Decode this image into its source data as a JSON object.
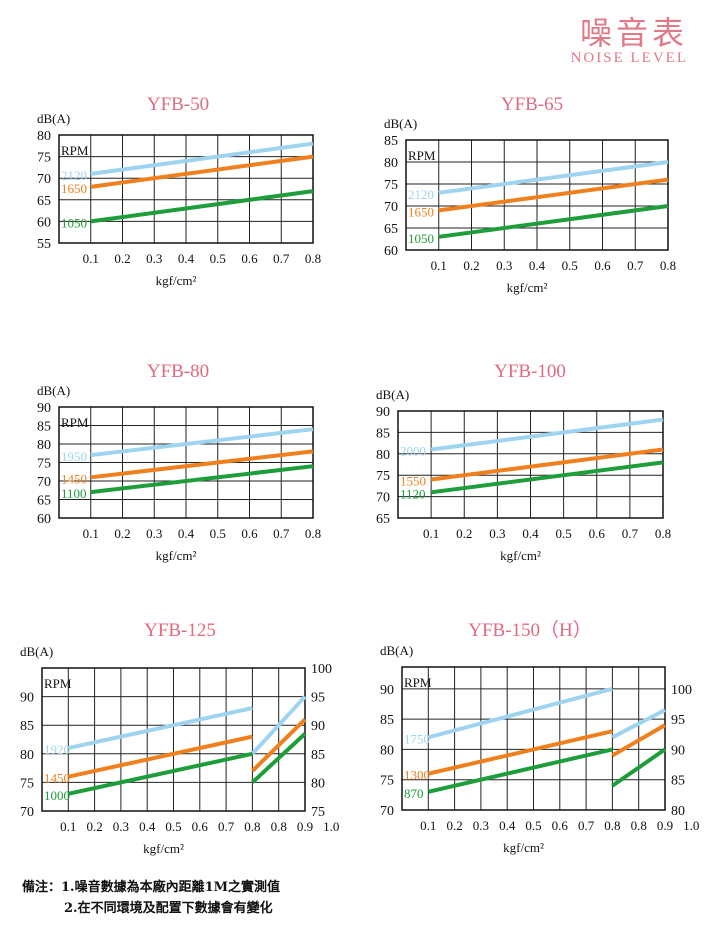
{
  "header": {
    "title_cn": "噪音表",
    "title_en": "NOISE LEVEL"
  },
  "notes": {
    "line1": "備注：1.噪音數據為本廠內距離1M之實測值",
    "line2": "2.在不同環境及配置下數據會有變化"
  },
  "colors": {
    "title": "#e06a80",
    "high": "#9fd4f0",
    "mid": "#f0801e",
    "low": "#1e9e3a"
  },
  "chart_data": [
    {
      "type": "line",
      "title": "YFB-50",
      "ylabel": "dB(A)",
      "xlabel": "kgf/cm²",
      "legend_title": "RPM",
      "x_ticks": [
        "0.1",
        "0.2",
        "0.3",
        "0.4",
        "0.5",
        "0.6",
        "0.7",
        "0.8"
      ],
      "ylim": [
        55,
        80
      ],
      "y_ticks": [
        55,
        60,
        65,
        70,
        75,
        80
      ],
      "grid": true,
      "series": [
        {
          "name": "2120",
          "color_key": "high",
          "points": [
            [
              0.1,
              71
            ],
            [
              0.8,
              78
            ]
          ]
        },
        {
          "name": "1650",
          "color_key": "mid",
          "points": [
            [
              0.1,
              68
            ],
            [
              0.8,
              75
            ]
          ]
        },
        {
          "name": "1050",
          "color_key": "low",
          "points": [
            [
              0.1,
              60
            ],
            [
              0.8,
              67
            ]
          ]
        }
      ]
    },
    {
      "type": "line",
      "title": "YFB-65",
      "ylabel": "dB(A)",
      "xlabel": "kgf/cm²",
      "legend_title": "RPM",
      "x_ticks": [
        "0.1",
        "0.2",
        "0.3",
        "0.4",
        "0.5",
        "0.6",
        "0.7",
        "0.8"
      ],
      "ylim": [
        60,
        85
      ],
      "y_ticks": [
        60,
        65,
        70,
        75,
        80,
        85
      ],
      "grid": true,
      "series": [
        {
          "name": "2120",
          "color_key": "high",
          "points": [
            [
              0.1,
              73
            ],
            [
              0.8,
              80
            ]
          ]
        },
        {
          "name": "1650",
          "color_key": "mid",
          "points": [
            [
              0.1,
              69
            ],
            [
              0.8,
              76
            ]
          ]
        },
        {
          "name": "1050",
          "color_key": "low",
          "points": [
            [
              0.1,
              63
            ],
            [
              0.8,
              70
            ]
          ]
        }
      ]
    },
    {
      "type": "line",
      "title": "YFB-80",
      "ylabel": "dB(A)",
      "xlabel": "kgf/cm²",
      "legend_title": "RPM",
      "x_ticks": [
        "0.1",
        "0.2",
        "0.3",
        "0.4",
        "0.5",
        "0.6",
        "0.7",
        "0.8"
      ],
      "ylim": [
        60,
        90
      ],
      "y_ticks": [
        60,
        65,
        70,
        75,
        80,
        85,
        90
      ],
      "grid": true,
      "series": [
        {
          "name": "1950",
          "color_key": "high",
          "points": [
            [
              0.1,
              77
            ],
            [
              0.8,
              84
            ]
          ]
        },
        {
          "name": "1450",
          "color_key": "mid",
          "points": [
            [
              0.1,
              71
            ],
            [
              0.8,
              78
            ]
          ]
        },
        {
          "name": "1100",
          "color_key": "low",
          "points": [
            [
              0.1,
              67
            ],
            [
              0.8,
              74
            ]
          ]
        }
      ]
    },
    {
      "type": "line",
      "title": "YFB-100",
      "ylabel": "dB(A)",
      "xlabel": "kgf/cm²",
      "legend_title": "",
      "x_ticks": [
        "0.1",
        "0.2",
        "0.3",
        "0.4",
        "0.5",
        "0.6",
        "0.7",
        "0.8"
      ],
      "ylim": [
        65,
        90
      ],
      "y_ticks": [
        65,
        70,
        75,
        80,
        85,
        90
      ],
      "grid": true,
      "series": [
        {
          "name": "2000",
          "color_key": "high",
          "points": [
            [
              0.1,
              81
            ],
            [
              0.8,
              88
            ]
          ]
        },
        {
          "name": "1550",
          "color_key": "mid",
          "points": [
            [
              0.1,
              74
            ],
            [
              0.8,
              81
            ]
          ]
        },
        {
          "name": "1120",
          "color_key": "low",
          "points": [
            [
              0.1,
              71
            ],
            [
              0.8,
              78
            ]
          ]
        }
      ]
    },
    {
      "type": "line",
      "title": "YFB-125",
      "ylabel": "dB(A)",
      "xlabel": "kgf/cm²",
      "legend_title": "RPM",
      "x_ticks": [
        "0.1",
        "0.2",
        "0.3",
        "0.4",
        "0.5",
        "0.6",
        "0.7",
        "0.8",
        "0.8",
        "0.9",
        "1.0"
      ],
      "ylim": [
        70,
        95
      ],
      "y_ticks": [
        70,
        75,
        80,
        85,
        90
      ],
      "y2lim": [
        75,
        100
      ],
      "y2_ticks": [
        75,
        80,
        85,
        90,
        95,
        100
      ],
      "grid": true,
      "series": [
        {
          "name": "1920",
          "color_key": "high",
          "points": [
            [
              0.1,
              81
            ],
            [
              0.8,
              88
            ]
          ],
          "points_right_axis": [
            [
              0.8,
              85
            ],
            [
              1.0,
              95
            ]
          ]
        },
        {
          "name": "1450",
          "color_key": "mid",
          "points": [
            [
              0.1,
              76
            ],
            [
              0.8,
              83
            ]
          ],
          "points_right_axis": [
            [
              0.8,
              82
            ],
            [
              1.0,
              91
            ]
          ]
        },
        {
          "name": "1000",
          "color_key": "low",
          "points": [
            [
              0.1,
              73
            ],
            [
              0.8,
              80
            ]
          ],
          "points_right_axis": [
            [
              0.8,
              80
            ],
            [
              1.0,
              88.5
            ]
          ]
        }
      ]
    },
    {
      "type": "line",
      "title": "YFB-150（H）",
      "ylabel": "dB(A)",
      "xlabel": "kgf/cm²",
      "legend_title": "RPM",
      "x_ticks": [
        "0.1",
        "0.2",
        "0.3",
        "0.4",
        "0.5",
        "0.6",
        "0.7",
        "0.8",
        "0.8",
        "0.9",
        "1.0"
      ],
      "ylim": [
        70,
        93.6
      ],
      "y_ticks": [
        70,
        75,
        80,
        85,
        90
      ],
      "y2lim": [
        80,
        103.6
      ],
      "y2_ticks": [
        80,
        85,
        90,
        95,
        100
      ],
      "grid": true,
      "series": [
        {
          "name": "1750",
          "color_key": "high",
          "points": [
            [
              0.1,
              82
            ],
            [
              0.8,
              90
            ]
          ],
          "points_right_axis": [
            [
              0.8,
              92
            ],
            [
              1.0,
              96.5
            ]
          ]
        },
        {
          "name": "1300",
          "color_key": "mid",
          "points": [
            [
              0.1,
              76
            ],
            [
              0.8,
              83
            ]
          ],
          "points_right_axis": [
            [
              0.8,
              89
            ],
            [
              1.0,
              94
            ]
          ]
        },
        {
          "name": "870",
          "color_key": "low",
          "points": [
            [
              0.1,
              73
            ],
            [
              0.8,
              80
            ]
          ],
          "points_right_axis": [
            [
              0.8,
              84
            ],
            [
              1.0,
              90
            ]
          ]
        }
      ]
    }
  ]
}
